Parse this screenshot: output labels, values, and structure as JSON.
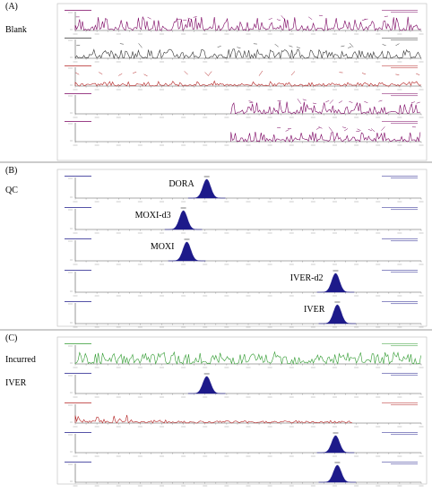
{
  "panels": [
    {
      "id": "A",
      "label": "(A)",
      "side_label": "Blank",
      "traces": [
        {
          "type": "noise",
          "color": "#7a0060",
          "density": 0.55,
          "amp": 0.8
        },
        {
          "type": "noise",
          "color": "#333333",
          "density": 0.9,
          "amp": 0.55
        },
        {
          "type": "noise",
          "color": "#b32020",
          "density": 0.5,
          "amp": 0.3
        },
        {
          "type": "noise",
          "color": "#7a0060",
          "density": 0.7,
          "amp": 0.75,
          "start": 0.45
        },
        {
          "type": "noise",
          "color": "#7a0060",
          "density": 0.5,
          "amp": 0.6,
          "start": 0.45
        }
      ]
    },
    {
      "id": "B",
      "label": "(B)",
      "side_label": "QC",
      "traces": [
        {
          "type": "peak",
          "name": "DORA",
          "color": "#1d1a8a",
          "rt": 6.12
        },
        {
          "type": "peak",
          "name": "MOXI-d3",
          "color": "#1d1a8a",
          "rt": 5.85
        },
        {
          "type": "peak",
          "name": "MOXI",
          "color": "#1d1a8a",
          "rt": 5.89
        },
        {
          "type": "peak",
          "name": "IVER-d2",
          "color": "#1d1a8a",
          "rt": 7.61
        },
        {
          "type": "peak",
          "name": "IVER",
          "color": "#1d1a8a",
          "rt": 7.63
        }
      ]
    },
    {
      "id": "C",
      "label": "(C)",
      "side_label": "Incurred IVER",
      "side_label_lines": [
        "Incurred",
        "IVER"
      ],
      "traces": [
        {
          "type": "noise",
          "color": "#2e9a2e",
          "density": 0.9,
          "amp": 0.7
        },
        {
          "type": "peak",
          "name": "",
          "color": "#1d1a8a",
          "rt": 6.12
        },
        {
          "type": "noise",
          "color": "#b32020",
          "density": 0.5,
          "amp": 0.35,
          "decay": true,
          "end": 0.8
        },
        {
          "type": "peak",
          "name": "",
          "color": "#1d1a8a",
          "rt": 7.61
        },
        {
          "type": "peak",
          "name": "",
          "color": "#1d1a8a",
          "rt": 7.63
        }
      ]
    }
  ],
  "chart_data": {
    "type": "line",
    "xlim": [
      4.6,
      8.6
    ],
    "ylim": [
      0,
      100
    ],
    "qc_peaks": [
      {
        "name": "DORA",
        "rt": 6.12
      },
      {
        "name": "MOXI-d3",
        "rt": 5.85
      },
      {
        "name": "MOXI",
        "rt": 5.89
      },
      {
        "name": "IVER-d2",
        "rt": 7.61
      },
      {
        "name": "IVER",
        "rt": 7.63
      }
    ]
  }
}
